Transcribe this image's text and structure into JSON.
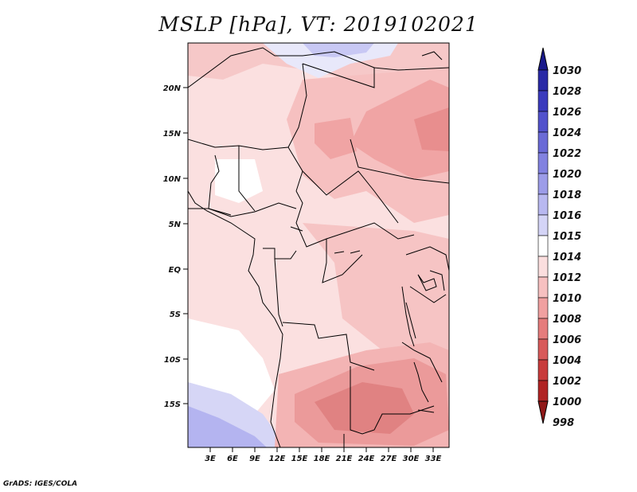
{
  "title": "MSLP [hPa], VT: 2019102021",
  "credit": "GrADS: IGES/COLA",
  "lat_labels": [
    "20N",
    "15N",
    "10N",
    "5N",
    "EQ",
    "5S",
    "10S",
    "15S"
  ],
  "lon_labels": [
    "3E",
    "6E",
    "9E",
    "12E",
    "15E",
    "18E",
    "21E",
    "24E",
    "27E",
    "30E",
    "33E"
  ],
  "colorbar": {
    "levels": [
      "1030",
      "1028",
      "1026",
      "1024",
      "1022",
      "1020",
      "1018",
      "1016",
      "1015",
      "1014",
      "1012",
      "1010",
      "1008",
      "1006",
      "1004",
      "1002",
      "1000",
      "998"
    ],
    "colors": [
      "#1a1a8c",
      "#2a2aa6",
      "#3b3bbd",
      "#5252cc",
      "#6a6ad6",
      "#8282e0",
      "#9c9ce8",
      "#b8b8f0",
      "#d4d4f6",
      "#ffffff",
      "#fbdede",
      "#f6c0c0",
      "#f0a0a0",
      "#e57c7c",
      "#d85a5a",
      "#c83c3c",
      "#b02424",
      "#901818"
    ]
  },
  "map_colors": {
    "land_light": "#fbe0e0",
    "pink": "#f6c4c4",
    "salmon": "#f0a4a4",
    "deep": "#e58a8a",
    "white": "#ffffff",
    "lavender": "#d6d6f6",
    "blue": "#b4b4f0"
  }
}
